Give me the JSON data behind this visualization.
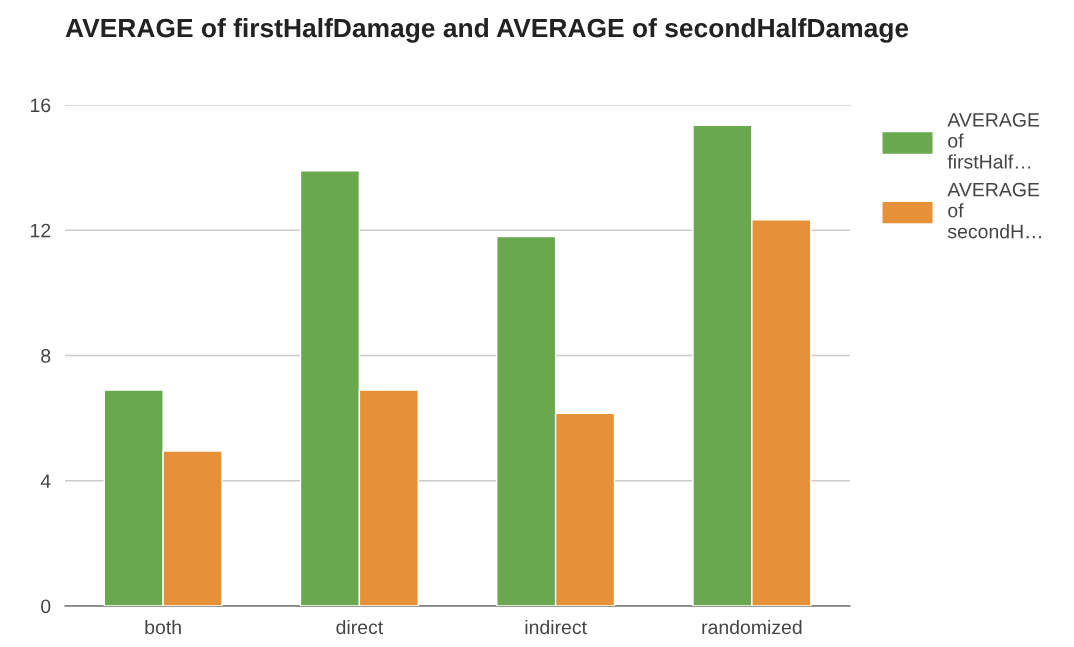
{
  "chart_data": {
    "type": "bar",
    "title": "AVERAGE of firstHalfDamage and AVERAGE of secondHalfDamage",
    "categories": [
      "both",
      "direct",
      "indirect",
      "randomized"
    ],
    "series": [
      {
        "name": "AVERAGE of firstHalf…",
        "color": "#6aa84f",
        "values": [
          6.9,
          13.9,
          11.8,
          15.35
        ]
      },
      {
        "name": "AVERAGE of secondH…",
        "color": "#e69138",
        "values": [
          4.95,
          6.9,
          6.15,
          12.33
        ]
      }
    ],
    "ylim": [
      0,
      16
    ],
    "yticks": [
      0,
      4,
      8,
      12,
      16
    ],
    "grid": "y",
    "legend": "right"
  }
}
